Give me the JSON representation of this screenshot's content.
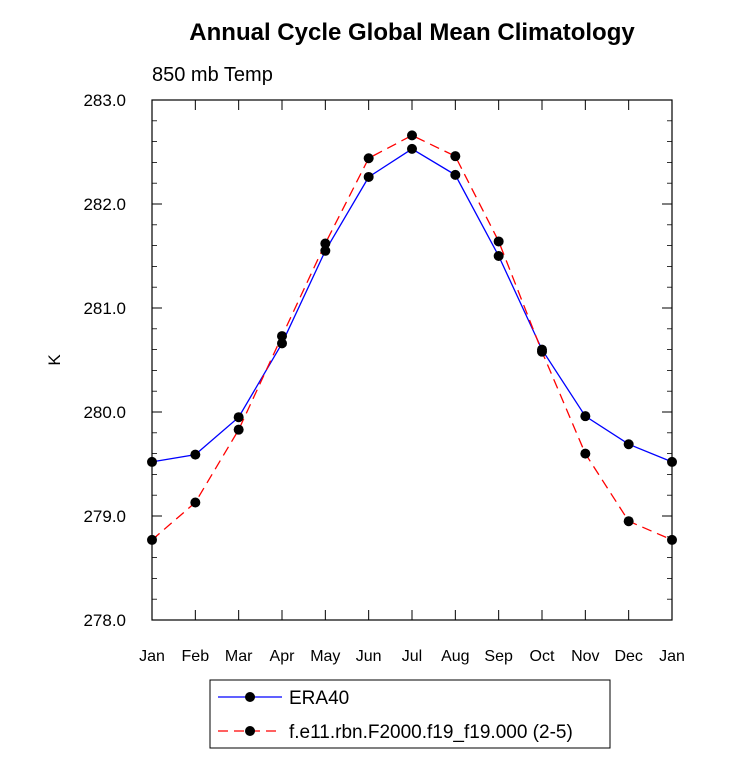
{
  "chart_data": {
    "type": "line",
    "title": "Annual Cycle Global Mean Climatology",
    "subtitle": "850 mb Temp",
    "xlabel": "",
    "ylabel": "K",
    "categories": [
      "Jan",
      "Feb",
      "Mar",
      "Apr",
      "May",
      "Jun",
      "Jul",
      "Aug",
      "Sep",
      "Oct",
      "Nov",
      "Dec",
      "Jan"
    ],
    "ylim": [
      278.0,
      283.0
    ],
    "y_ticks": [
      "278.0",
      "279.0",
      "280.0",
      "281.0",
      "282.0",
      "283.0"
    ],
    "grid": false,
    "legend_position": "bottom",
    "series": [
      {
        "name": "ERA40",
        "color": "#0000ff",
        "line_style": "solid",
        "marker": "filled-circle",
        "values": [
          279.52,
          279.59,
          279.95,
          280.66,
          281.55,
          282.26,
          282.53,
          282.28,
          281.5,
          280.6,
          279.96,
          279.69,
          279.52
        ]
      },
      {
        "name": "f.e11.rbn.F2000.f19_f19.000 (2-5)",
        "color": "#ff0000",
        "line_style": "dashed",
        "marker": "filled-circle",
        "values": [
          278.77,
          279.13,
          279.83,
          280.73,
          281.62,
          282.44,
          282.66,
          282.46,
          281.64,
          280.58,
          279.6,
          278.95,
          278.77
        ]
      }
    ]
  }
}
